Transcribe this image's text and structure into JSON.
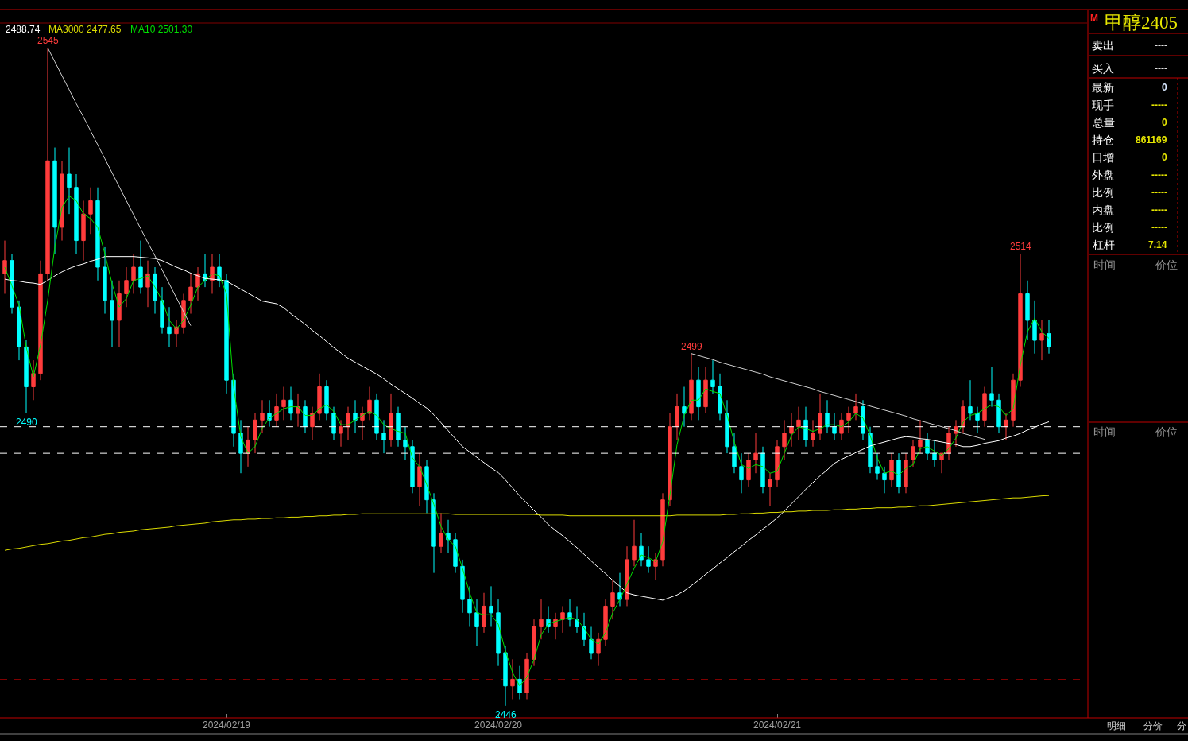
{
  "chart_data": [
    {
      "type": "candlestick",
      "categories": [
        null,
        null,
        null,
        null,
        null,
        null,
        null,
        null,
        null,
        null,
        null,
        null,
        null,
        null,
        null,
        null,
        null,
        null,
        null,
        null,
        null,
        null,
        null,
        null,
        null,
        null,
        null,
        null,
        null,
        null,
        null,
        "2024/02/19",
        null,
        null,
        null,
        null,
        null,
        null,
        null,
        null,
        null,
        null,
        null,
        null,
        null,
        null,
        null,
        null,
        null,
        null,
        null,
        null,
        null,
        null,
        null,
        null,
        null,
        null,
        null,
        null,
        null,
        null,
        null,
        null,
        null,
        null,
        null,
        null,
        null,
        "2024/02/20",
        null,
        null,
        null,
        null,
        null,
        null,
        null,
        null,
        null,
        null,
        null,
        null,
        null,
        null,
        null,
        null,
        null,
        null,
        null,
        null,
        null,
        null,
        null,
        null,
        null,
        null,
        null,
        null,
        null,
        null,
        null,
        null,
        null,
        null,
        null,
        null,
        null,
        null,
        "2024/02/21",
        null,
        null,
        null,
        null,
        null,
        null,
        null,
        null,
        null,
        null,
        null,
        null,
        null,
        null,
        null,
        null,
        null,
        null,
        null,
        null,
        null,
        null,
        null,
        null,
        null,
        null,
        null,
        null,
        null,
        null,
        null,
        null,
        null,
        null,
        null,
        null,
        null,
        null
      ],
      "ohlc": [
        [
          2511,
          2516,
          2508,
          2513
        ],
        [
          2513,
          2514,
          2505,
          2506
        ],
        [
          2506,
          2507,
          2498,
          2500
        ],
        [
          2500,
          2501,
          2490,
          2494
        ],
        [
          2494,
          2498,
          2492,
          2496
        ],
        [
          2496,
          2513,
          2495,
          2511
        ],
        [
          2511,
          2545,
          2510,
          2528
        ],
        [
          2528,
          2530,
          2514,
          2518
        ],
        [
          2518,
          2528,
          2516,
          2526
        ],
        [
          2526,
          2530,
          2520,
          2524
        ],
        [
          2524,
          2526,
          2514,
          2516
        ],
        [
          2516,
          2522,
          2513,
          2520
        ],
        [
          2520,
          2524,
          2517,
          2522
        ],
        [
          2522,
          2524,
          2510,
          2512
        ],
        [
          2512,
          2515,
          2505,
          2507
        ],
        [
          2507,
          2510,
          2500,
          2504
        ],
        [
          2504,
          2510,
          2500,
          2508
        ],
        [
          2508,
          2512,
          2506,
          2510
        ],
        [
          2510,
          2514,
          2508,
          2512
        ],
        [
          2512,
          2516,
          2508,
          2509
        ],
        [
          2509,
          2513,
          2506,
          2511
        ],
        [
          2511,
          2512,
          2505,
          2507
        ],
        [
          2507,
          2509,
          2502,
          2503
        ],
        [
          2503,
          2506,
          2500,
          2502
        ],
        [
          2502,
          2504,
          2500,
          2503
        ],
        [
          2503,
          2508,
          2502,
          2507
        ],
        [
          2507,
          2511,
          2505,
          2509
        ],
        [
          2509,
          2512,
          2507,
          2511
        ],
        [
          2511,
          2514,
          2509,
          2510
        ],
        [
          2510,
          2514,
          2508,
          2512
        ],
        [
          2512,
          2514,
          2509,
          2510
        ],
        [
          2510,
          2511,
          2493,
          2495
        ],
        [
          2495,
          2496,
          2485,
          2487
        ],
        [
          2487,
          2489,
          2481,
          2484
        ],
        [
          2484,
          2488,
          2482,
          2486
        ],
        [
          2486,
          2490,
          2484,
          2489
        ],
        [
          2489,
          2492,
          2487,
          2490
        ],
        [
          2490,
          2492,
          2488,
          2489
        ],
        [
          2489,
          2493,
          2488,
          2491
        ],
        [
          2491,
          2494,
          2489,
          2492
        ],
        [
          2492,
          2494,
          2489,
          2490
        ],
        [
          2490,
          2493,
          2488,
          2491
        ],
        [
          2491,
          2492,
          2487,
          2488
        ],
        [
          2488,
          2491,
          2486,
          2490
        ],
        [
          2490,
          2496,
          2489,
          2494
        ],
        [
          2494,
          2495,
          2489,
          2490
        ],
        [
          2490,
          2491,
          2486,
          2487
        ],
        [
          2487,
          2489,
          2485,
          2488
        ],
        [
          2488,
          2491,
          2486,
          2490
        ],
        [
          2490,
          2492,
          2487,
          2489
        ],
        [
          2489,
          2491,
          2486,
          2490
        ],
        [
          2490,
          2494,
          2489,
          2492
        ],
        [
          2492,
          2493,
          2486,
          2487
        ],
        [
          2487,
          2489,
          2484,
          2486
        ],
        [
          2486,
          2493,
          2485,
          2490
        ],
        [
          2490,
          2491,
          2485,
          2486
        ],
        [
          2486,
          2488,
          2483,
          2485
        ],
        [
          2485,
          2486,
          2478,
          2479
        ],
        [
          2479,
          2484,
          2476,
          2482
        ],
        [
          2482,
          2483,
          2475,
          2477
        ],
        [
          2477,
          2478,
          2466,
          2470
        ],
        [
          2470,
          2475,
          2469,
          2472
        ],
        [
          2472,
          2474,
          2469,
          2471
        ],
        [
          2471,
          2472,
          2466,
          2467
        ],
        [
          2467,
          2468,
          2460,
          2462
        ],
        [
          2462,
          2464,
          2458,
          2460
        ],
        [
          2460,
          2462,
          2455,
          2458
        ],
        [
          2458,
          2463,
          2457,
          2461
        ],
        [
          2461,
          2464,
          2458,
          2460
        ],
        [
          2460,
          2462,
          2452,
          2454
        ],
        [
          2454,
          2455,
          2446,
          2449
        ],
        [
          2449,
          2453,
          2447,
          2450
        ],
        [
          2450,
          2452,
          2447,
          2448
        ],
        [
          2448,
          2454,
          2447,
          2453
        ],
        [
          2453,
          2459,
          2452,
          2458
        ],
        [
          2458,
          2462,
          2456,
          2459
        ],
        [
          2459,
          2461,
          2457,
          2458
        ],
        [
          2458,
          2460,
          2456,
          2459
        ],
        [
          2459,
          2461,
          2457,
          2460
        ],
        [
          2460,
          2462,
          2458,
          2459
        ],
        [
          2459,
          2461,
          2457,
          2458
        ],
        [
          2458,
          2460,
          2455,
          2456
        ],
        [
          2456,
          2458,
          2453,
          2454
        ],
        [
          2454,
          2457,
          2452,
          2456
        ],
        [
          2456,
          2462,
          2455,
          2461
        ],
        [
          2461,
          2465,
          2459,
          2463
        ],
        [
          2463,
          2466,
          2461,
          2462
        ],
        [
          2462,
          2470,
          2461,
          2468
        ],
        [
          2468,
          2474,
          2467,
          2470
        ],
        [
          2470,
          2472,
          2467,
          2468
        ],
        [
          2468,
          2470,
          2466,
          2467
        ],
        [
          2467,
          2469,
          2465,
          2468
        ],
        [
          2468,
          2478,
          2467,
          2477
        ],
        [
          2477,
          2490,
          2476,
          2488
        ],
        [
          2488,
          2493,
          2486,
          2491
        ],
        [
          2491,
          2494,
          2488,
          2490
        ],
        [
          2490,
          2499,
          2489,
          2495
        ],
        [
          2495,
          2497,
          2489,
          2491
        ],
        [
          2491,
          2497,
          2490,
          2495
        ],
        [
          2495,
          2498,
          2493,
          2494
        ],
        [
          2494,
          2496,
          2489,
          2490
        ],
        [
          2490,
          2492,
          2484,
          2485
        ],
        [
          2485,
          2487,
          2481,
          2482
        ],
        [
          2482,
          2484,
          2478,
          2480
        ],
        [
          2480,
          2484,
          2479,
          2483
        ],
        [
          2483,
          2487,
          2481,
          2484
        ],
        [
          2484,
          2485,
          2478,
          2479
        ],
        [
          2479,
          2481,
          2476,
          2480
        ],
        [
          2480,
          2486,
          2479,
          2485
        ],
        [
          2485,
          2489,
          2483,
          2487
        ],
        [
          2487,
          2490,
          2485,
          2488
        ],
        [
          2488,
          2491,
          2486,
          2489
        ],
        [
          2489,
          2491,
          2485,
          2486
        ],
        [
          2486,
          2489,
          2485,
          2487
        ],
        [
          2487,
          2493,
          2486,
          2490
        ],
        [
          2490,
          2492,
          2487,
          2488
        ],
        [
          2488,
          2490,
          2486,
          2487
        ],
        [
          2487,
          2490,
          2486,
          2489
        ],
        [
          2489,
          2491,
          2487,
          2490
        ],
        [
          2490,
          2493,
          2489,
          2491
        ],
        [
          2491,
          2492,
          2486,
          2487
        ],
        [
          2487,
          2488,
          2481,
          2482
        ],
        [
          2482,
          2484,
          2480,
          2481
        ],
        [
          2481,
          2482,
          2478,
          2480
        ],
        [
          2480,
          2484,
          2479,
          2483
        ],
        [
          2483,
          2484,
          2478,
          2479
        ],
        [
          2479,
          2484,
          2478,
          2483
        ],
        [
          2483,
          2486,
          2482,
          2485
        ],
        [
          2485,
          2489,
          2484,
          2486
        ],
        [
          2486,
          2487,
          2483,
          2484
        ],
        [
          2484,
          2486,
          2482,
          2483
        ],
        [
          2483,
          2484,
          2481,
          2484
        ],
        [
          2484,
          2488,
          2483,
          2487
        ],
        [
          2487,
          2489,
          2485,
          2488
        ],
        [
          2488,
          2492,
          2487,
          2491
        ],
        [
          2491,
          2495,
          2489,
          2490
        ],
        [
          2490,
          2491,
          2487,
          2489
        ],
        [
          2489,
          2494,
          2488,
          2493
        ],
        [
          2493,
          2497,
          2491,
          2492
        ],
        [
          2492,
          2493,
          2487,
          2488
        ],
        [
          2488,
          2490,
          2486,
          2489
        ],
        [
          2489,
          2496,
          2488,
          2495
        ],
        [
          2495,
          2514,
          2494,
          2508
        ],
        [
          2508,
          2510,
          2501,
          2504
        ],
        [
          2504,
          2507,
          2499,
          2501
        ],
        [
          2501,
          2504,
          2498,
          2502
        ],
        [
          2502,
          2504,
          2499,
          2500
        ]
      ],
      "colors": [
        "#ff3c3c",
        "#00ffff",
        "#00ffff",
        "#00ffff",
        "#ff3c3c",
        "#ff3c3c",
        "#ff3c3c",
        "#00ffff",
        "#ff3c3c",
        "#00ffff",
        "#00ffff",
        "#ff3c3c",
        "#ff3c3c",
        "#00ffff",
        "#00ffff",
        "#00ffff",
        "#ff3c3c",
        "#ff3c3c",
        "#ff3c3c",
        "#00ffff",
        "#ff3c3c",
        "#00ffff",
        "#00ffff",
        "#00ffff",
        "#ff3c3c",
        "#ff3c3c",
        "#ff3c3c",
        "#ff3c3c",
        "#00ffff",
        "#ff3c3c",
        "#00ffff",
        "#00ffff",
        "#00ffff",
        "#00ffff",
        "#ff3c3c",
        "#ff3c3c",
        "#ff3c3c",
        "#00ffff",
        "#ff3c3c",
        "#ff3c3c",
        "#00ffff",
        "#ff3c3c",
        "#00ffff",
        "#ff3c3c",
        "#ff3c3c",
        "#00ffff",
        "#00ffff",
        "#ff3c3c",
        "#ff3c3c",
        "#00ffff",
        "#ff3c3c",
        "#ff3c3c",
        "#00ffff",
        "#00ffff",
        "#ff3c3c",
        "#00ffff",
        "#00ffff",
        "#00ffff",
        "#ff3c3c",
        "#00ffff",
        "#00ffff",
        "#ff3c3c",
        "#00ffff",
        "#00ffff",
        "#00ffff",
        "#00ffff",
        "#00ffff",
        "#ff3c3c",
        "#00ffff",
        "#00ffff",
        "#00ffff",
        "#ff3c3c",
        "#00ffff",
        "#ff3c3c",
        "#ff3c3c",
        "#ff3c3c",
        "#00ffff",
        "#ff3c3c",
        "#ff3c3c",
        "#00ffff",
        "#00ffff",
        "#00ffff",
        "#00ffff",
        "#ff3c3c",
        "#ff3c3c",
        "#ff3c3c",
        "#00ffff",
        "#ff3c3c",
        "#ff3c3c",
        "#00ffff",
        "#00ffff",
        "#ff3c3c",
        "#ff3c3c",
        "#ff3c3c",
        "#ff3c3c",
        "#00ffff",
        "#ff3c3c",
        "#00ffff",
        "#ff3c3c",
        "#00ffff",
        "#00ffff",
        "#00ffff",
        "#00ffff",
        "#00ffff",
        "#ff3c3c",
        "#ff3c3c",
        "#00ffff",
        "#ff3c3c",
        "#ff3c3c",
        "#ff3c3c",
        "#ff3c3c",
        "#ff3c3c",
        "#00ffff",
        "#ff3c3c",
        "#ff3c3c",
        "#00ffff",
        "#00ffff",
        "#ff3c3c",
        "#ff3c3c",
        "#ff3c3c",
        "#00ffff",
        "#00ffff",
        "#00ffff",
        "#00ffff",
        "#ff3c3c",
        "#00ffff",
        "#ff3c3c",
        "#ff3c3c",
        "#ff3c3c",
        "#00ffff",
        "#00ffff",
        "#ff3c3c",
        "#ff3c3c",
        "#ff3c3c",
        "#ff3c3c",
        "#00ffff",
        "#00ffff",
        "#ff3c3c",
        "#00ffff",
        "#00ffff",
        "#ff3c3c",
        "#ff3c3c",
        "#ff3c3c",
        "#00ffff",
        "#00ffff",
        "#ff3c3c",
        "#00ffff"
      ],
      "yticks": [
        {
          "value": 2450,
          "label": null
        },
        {
          "value": 2500,
          "label": null
        }
      ],
      "grid": "y",
      "tick_labels": "x",
      "legend": "top left",
      "series": [
        {
          "type": "line",
          "name": "2488.74",
          "color": "#ffffff",
          "values": [
            2510.2,
            2510.0,
            2509.9,
            2509.7,
            2509.6,
            2509.4,
            2510.0,
            2510.7,
            2511.3,
            2511.8,
            2512.2,
            2512.5,
            2512.9,
            2513.2,
            2513.6,
            2513.6,
            2513.6,
            2513.6,
            2513.6,
            2513.5,
            2513.4,
            2513.3,
            2513.0,
            2512.5,
            2512.0,
            2511.6,
            2511.1,
            2510.7,
            2510.3,
            2510.2,
            2510.1,
            2509.9,
            2509.3,
            2508.7,
            2508.1,
            2507.5,
            2506.9,
            2506.7,
            2506.5,
            2505.9,
            2505.0,
            2504.2,
            2503.4,
            2502.5,
            2501.7,
            2500.8,
            2499.9,
            2499.1,
            2498.3,
            2497.7,
            2497.1,
            2496.5,
            2495.9,
            2495.2,
            2494.4,
            2493.7,
            2493.0,
            2492.3,
            2491.5,
            2490.8,
            2489.8,
            2488.6,
            2487.4,
            2486.2,
            2485.0,
            2484.2,
            2483.4,
            2482.6,
            2481.8,
            2481.1,
            2480.0,
            2478.8,
            2477.6,
            2476.5,
            2475.4,
            2474.4,
            2473.3,
            2472.4,
            2471.6,
            2470.7,
            2469.8,
            2468.8,
            2467.8,
            2466.8,
            2465.9,
            2464.9,
            2464.0,
            2463.0,
            2462.7,
            2462.5,
            2462.3,
            2462.1,
            2461.9,
            2462.3,
            2462.7,
            2463.3,
            2464.1,
            2464.9,
            2465.8,
            2466.6,
            2467.5,
            2468.3,
            2469.2,
            2470.0,
            2470.9,
            2471.7,
            2472.6,
            2473.4,
            2474.3,
            2475.3,
            2476.4,
            2477.5,
            2478.6,
            2479.6,
            2480.6,
            2481.5,
            2482.5,
            2483.1,
            2483.6,
            2484.1,
            2484.6,
            2485.1,
            2485.4,
            2485.7,
            2486.0,
            2486.3,
            2486.5,
            2486.4,
            2486.2,
            2486.1,
            2485.9,
            2485.7,
            2485.5,
            2485.3,
            2485.0,
            2485.0,
            2485.2,
            2485.5,
            2485.7,
            2485.9,
            2486.3,
            2486.6,
            2487.0,
            2487.5,
            2487.9,
            2488.4,
            2488.74
          ]
        },
        {
          "type": "line",
          "name": "MA3000 2477.65",
          "color": "#dcdc00",
          "values": [
            2469.4,
            2469.6,
            2469.7,
            2469.9,
            2470.1,
            2470.3,
            2470.4,
            2470.6,
            2470.8,
            2470.9,
            2471.1,
            2471.3,
            2471.4,
            2471.6,
            2471.8,
            2471.9,
            2472.1,
            2472.2,
            2472.3,
            2472.5,
            2472.6,
            2472.7,
            2472.8,
            2472.9,
            2473.1,
            2473.2,
            2473.3,
            2473.4,
            2473.5,
            2473.7,
            2473.8,
            2473.9,
            2474.0,
            2474.0,
            2474.1,
            2474.1,
            2474.2,
            2474.2,
            2474.3,
            2474.3,
            2474.4,
            2474.4,
            2474.5,
            2474.5,
            2474.6,
            2474.6,
            2474.7,
            2474.7,
            2474.8,
            2474.8,
            2474.9,
            2474.9,
            2474.9,
            2474.9,
            2474.9,
            2474.9,
            2474.9,
            2474.9,
            2474.9,
            2474.9,
            2474.9,
            2474.9,
            2474.9,
            2474.8,
            2474.8,
            2474.8,
            2474.8,
            2474.8,
            2474.8,
            2474.8,
            2474.8,
            2474.8,
            2474.8,
            2474.8,
            2474.8,
            2474.7,
            2474.7,
            2474.7,
            2474.7,
            2474.6,
            2474.6,
            2474.6,
            2474.6,
            2474.6,
            2474.6,
            2474.6,
            2474.6,
            2474.6,
            2474.6,
            2474.6,
            2474.6,
            2474.6,
            2474.6,
            2474.6,
            2474.7,
            2474.7,
            2474.7,
            2474.7,
            2474.7,
            2474.7,
            2474.7,
            2474.8,
            2474.8,
            2474.9,
            2474.9,
            2475.0,
            2475.0,
            2475.1,
            2475.1,
            2475.2,
            2475.2,
            2475.3,
            2475.3,
            2475.4,
            2475.4,
            2475.4,
            2475.5,
            2475.5,
            2475.6,
            2475.6,
            2475.7,
            2475.7,
            2475.8,
            2475.8,
            2475.8,
            2475.9,
            2475.9,
            2476.0,
            2476.1,
            2476.1,
            2476.2,
            2476.3,
            2476.4,
            2476.5,
            2476.6,
            2476.7,
            2476.8,
            2476.9,
            2477.0,
            2477.1,
            2477.2,
            2477.3,
            2477.3,
            2477.4,
            2477.5,
            2477.6,
            2477.65
          ]
        },
        {
          "type": "line",
          "name": "MA10 2501.30",
          "color": "#00e000",
          "values": [
            2512.0,
            2509.2,
            2506.3,
            2500.0,
            2495.5,
            2500.3,
            2507.0,
            2515.0,
            2521.0,
            2522.7,
            2522.0,
            2520.0,
            2519.3,
            2518.0,
            2514.0,
            2509.5,
            2506.0,
            2507.3,
            2510.0,
            2510.3,
            2510.7,
            2509.0,
            2507.0,
            2504.0,
            2502.7,
            2504.0,
            2506.3,
            2509.0,
            2510.0,
            2511.0,
            2510.7,
            2508.0,
            2494.0,
            2486.5,
            2484.0,
            2485.0,
            2487.8,
            2489.3,
            2490.0,
            2490.7,
            2491.0,
            2491.0,
            2489.7,
            2489.7,
            2490.7,
            2491.3,
            2490.3,
            2488.3,
            2488.3,
            2489.0,
            2489.7,
            2490.3,
            2489.7,
            2488.3,
            2487.7,
            2487.3,
            2487.0,
            2483.3,
            2482.0,
            2479.3,
            2476.3,
            2473.0,
            2471.0,
            2470.0,
            2466.7,
            2463.0,
            2460.0,
            2459.7,
            2459.7,
            2458.3,
            2454.3,
            2451.0,
            2449.0,
            2450.3,
            2453.0,
            2456.7,
            2458.3,
            2458.7,
            2459.0,
            2459.3,
            2459.0,
            2457.7,
            2456.0,
            2455.3,
            2457.0,
            2460.0,
            2462.0,
            2464.3,
            2466.7,
            2468.7,
            2468.3,
            2467.7,
            2470.7,
            2477.7,
            2485.3,
            2489.7,
            2492.0,
            2492.0,
            2493.7,
            2493.3,
            2493.0,
            2489.7,
            2485.7,
            2482.3,
            2481.7,
            2482.3,
            2482.0,
            2481.0,
            2481.3,
            2484.0,
            2486.7,
            2488.0,
            2487.7,
            2487.3,
            2487.7,
            2488.3,
            2488.3,
            2488.0,
            2488.7,
            2490.0,
            2489.3,
            2486.7,
            2483.3,
            2481.0,
            2481.3,
            2480.7,
            2481.7,
            2482.3,
            2484.7,
            2485.0,
            2484.3,
            2483.7,
            2484.7,
            2486.3,
            2488.7,
            2489.7,
            2490.0,
            2490.7,
            2491.3,
            2491.0,
            2489.7,
            2490.7,
            2497.3,
            2502.3,
            2504.3,
            2502.3,
            2501.3
          ]
        },
        {
          "type": "line",
          "color": "#d0d0d0",
          "values": [
            null,
            null,
            null,
            null,
            null,
            null,
            2545.0,
            2542.9,
            2540.8,
            2538.7,
            2536.6,
            2534.6,
            2532.5,
            2530.4,
            2528.3,
            2526.2,
            2524.1,
            2522.0,
            2519.9,
            2517.8,
            2515.7,
            2513.7,
            2511.6,
            2509.5,
            2507.4,
            2505.3,
            2503.2,
            null,
            null,
            null,
            null,
            null,
            null,
            null,
            null,
            null,
            null,
            null,
            null,
            null,
            null,
            null,
            null,
            null,
            null,
            null,
            null,
            null,
            null,
            null,
            null,
            null,
            null,
            null,
            null,
            null,
            null,
            null,
            null,
            null,
            null,
            null,
            null,
            null,
            null,
            null,
            null,
            null,
            null,
            null,
            null,
            null,
            null,
            null,
            null,
            null,
            null,
            null,
            null,
            null,
            null,
            null,
            null,
            null,
            null,
            null,
            null,
            null,
            null,
            null,
            null,
            null,
            null,
            null,
            null,
            null,
            null,
            null,
            null,
            null,
            null,
            null,
            null,
            null,
            null,
            null,
            null,
            null,
            null,
            null,
            null,
            null,
            null,
            null,
            null,
            null,
            null,
            null,
            null,
            null,
            null,
            null,
            null,
            null,
            null,
            null,
            null,
            null,
            null,
            null,
            null,
            null,
            null,
            null,
            null,
            null,
            null,
            null,
            null,
            null,
            null,
            null,
            null,
            null,
            null,
            null,
            null
          ]
        },
        {
          "type": "line",
          "color": "#d0d0d0",
          "values": [
            null,
            null,
            null,
            null,
            null,
            null,
            null,
            null,
            null,
            null,
            null,
            null,
            null,
            null,
            null,
            null,
            null,
            null,
            null,
            null,
            null,
            null,
            null,
            null,
            null,
            null,
            null,
            null,
            null,
            null,
            null,
            null,
            null,
            null,
            null,
            null,
            null,
            null,
            null,
            null,
            null,
            null,
            null,
            null,
            null,
            null,
            null,
            null,
            null,
            null,
            null,
            null,
            null,
            null,
            null,
            null,
            null,
            null,
            null,
            null,
            null,
            null,
            null,
            null,
            null,
            null,
            null,
            null,
            null,
            null,
            null,
            null,
            null,
            null,
            null,
            null,
            null,
            null,
            null,
            null,
            null,
            null,
            null,
            null,
            null,
            null,
            null,
            null,
            null,
            null,
            null,
            null,
            null,
            null,
            null,
            null,
            2499.0,
            2498.7,
            2498.4,
            2498.1,
            2497.7,
            2497.4,
            2497.1,
            2496.8,
            2496.5,
            2496.2,
            2495.9,
            2495.5,
            2495.2,
            2494.9,
            2494.6,
            2494.3,
            2494.0,
            2493.7,
            2493.3,
            2493.0,
            2492.7,
            2492.4,
            2492.1,
            2491.8,
            2491.4,
            2491.1,
            2490.8,
            2490.5,
            2490.2,
            2489.9,
            2489.6,
            2489.2,
            2488.9,
            2488.6,
            2488.3,
            2488.0,
            2487.7,
            2487.4,
            2487.0,
            2486.7,
            2486.4,
            2486.1,
            null,
            null,
            null,
            null,
            null,
            null,
            null,
            null,
            null
          ]
        }
      ],
      "ref_lines": [
        {
          "axis": "y",
          "value": 2488,
          "color": "#ffffff",
          "line_style": "dashed"
        },
        {
          "axis": "y",
          "value": 2484,
          "color": "#ffffff",
          "line_style": "dashed"
        }
      ],
      "annotations": [
        {
          "text": "2545",
          "y": 2545
        },
        {
          "text": "2490",
          "y": 2490
        },
        {
          "text": "2499",
          "y": 2499
        },
        {
          "text": "2446",
          "y": 2446
        },
        {
          "text": "2514",
          "y": 2514
        }
      ]
    },
    {
      "type": "other",
      "title": "甲醇2405",
      "annotations": [
        "M",
        "卖出",
        "----",
        "买入",
        "----",
        "最新",
        "0",
        "现手",
        "-----",
        "总量",
        "0",
        "持仓",
        "861169",
        "日增",
        "0",
        "外盘",
        "-----",
        "比例",
        "-----",
        "内盘",
        "-----",
        "比例",
        "-----",
        "杠杆",
        "7.14",
        "时间",
        "价位",
        "时间",
        "价位",
        "明细",
        "分价",
        "分"
      ]
    }
  ]
}
